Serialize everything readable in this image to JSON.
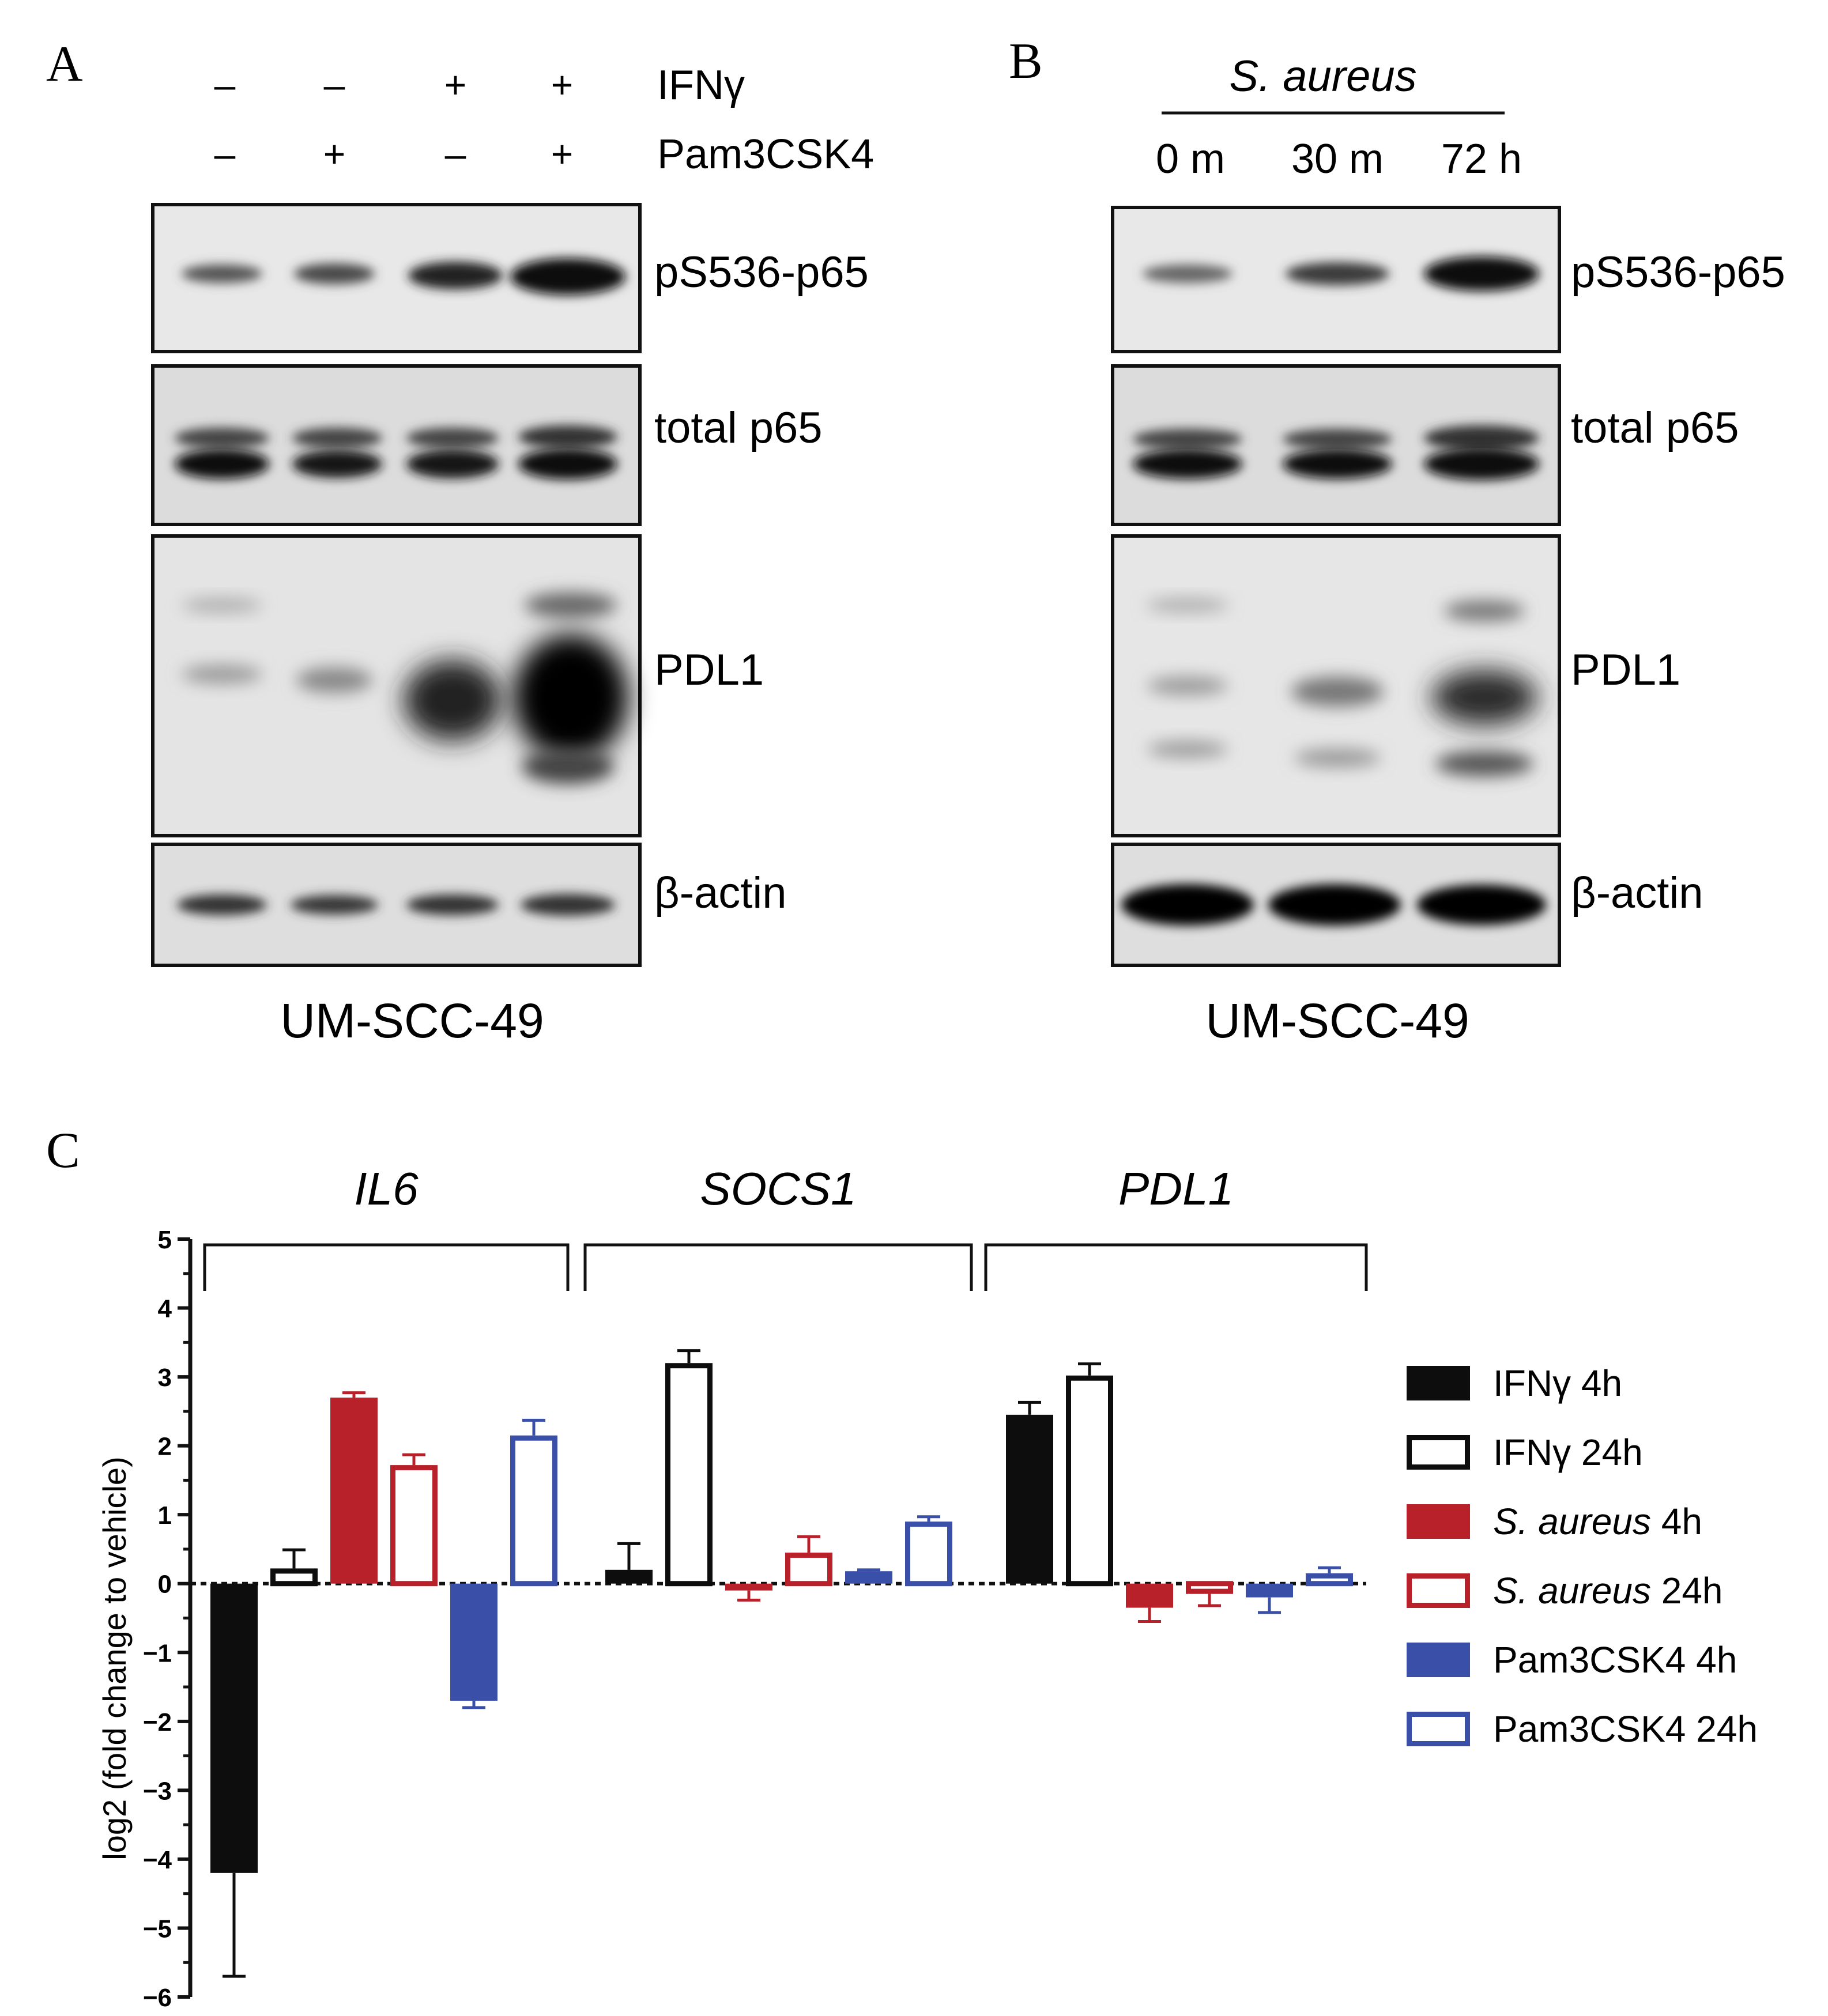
{
  "panels": {
    "a": {
      "letter": "A",
      "treatment_rows": [
        {
          "label": "IFNγ",
          "signs": [
            "–",
            "–",
            "+",
            "+"
          ]
        },
        {
          "label": "Pam3CSK4",
          "signs": [
            "–",
            "+",
            "–",
            "+"
          ]
        }
      ],
      "blots": [
        "pS536-p65",
        "total p65",
        "PDL1",
        "β-actin"
      ],
      "cell_line": "UM-SCC-49"
    },
    "b": {
      "letter": "B",
      "header": "S. aureus",
      "timepoints": [
        "0 m",
        "30 m",
        "72 h"
      ],
      "blots": [
        "pS536-p65",
        "total p65",
        "PDL1",
        "β-actin"
      ],
      "cell_line": "UM-SCC-49"
    },
    "c": {
      "letter": "C"
    }
  },
  "chart_data": {
    "type": "bar",
    "title": "",
    "xlabel": "",
    "ylabel": "log2 (fold change to vehicle)",
    "ylim": [
      -6,
      5
    ],
    "yticks": [
      "5",
      "4",
      "3",
      "2",
      "1",
      "0",
      "−1",
      "−2",
      "−3",
      "−4",
      "−5",
      "−6"
    ],
    "ytick_values": [
      5,
      4,
      3,
      2,
      1,
      0,
      -1,
      -2,
      -3,
      -4,
      -5,
      -6
    ],
    "grid": false,
    "zero_line": "dashed",
    "legend_position": "right",
    "categories": [
      "IL6",
      "SOCS1",
      "PDL1"
    ],
    "series": [
      {
        "name": "IFNγ 4h",
        "legend_main": "IFNγ",
        "legend_rest": " 4h",
        "italic_species": false,
        "color": "#0d0d0d",
        "filled": true,
        "values": [
          -4.2,
          0.2,
          2.45
        ],
        "errors": [
          1.5,
          0.38,
          0.18
        ]
      },
      {
        "name": "IFNγ 24h",
        "legend_main": "IFNγ",
        "legend_rest": " 24h",
        "italic_species": false,
        "color": "#0d0d0d",
        "filled": false,
        "values": [
          0.22,
          3.2,
          3.02
        ],
        "errors": [
          0.27,
          0.18,
          0.17
        ]
      },
      {
        "name": "S. aureus 4h",
        "legend_main": "S. aureus",
        "legend_rest": " 4h",
        "italic_species": true,
        "color": "#b8202a",
        "filled": true,
        "values": [
          2.7,
          -0.1,
          -0.35
        ],
        "errors": [
          0.07,
          0.14,
          0.2
        ]
      },
      {
        "name": "S. aureus 24h",
        "legend_main": "S. aureus",
        "legend_rest": " 24h",
        "italic_species": true,
        "color": "#b8202a",
        "filled": false,
        "values": [
          1.72,
          0.45,
          -0.15
        ],
        "errors": [
          0.15,
          0.23,
          0.17
        ]
      },
      {
        "name": "Pam3CSK4 4h",
        "legend_main": "Pam3CSK4",
        "legend_rest": " 4h",
        "italic_species": false,
        "color": "#3a4fa8",
        "filled": true,
        "values": [
          -1.7,
          0.18,
          -0.2
        ],
        "errors": [
          0.1,
          0.02,
          0.22
        ]
      },
      {
        "name": "Pam3CSK4 24h",
        "legend_main": "Pam3CSK4",
        "legend_rest": " 24h",
        "italic_species": false,
        "color": "#3a4fa8",
        "filled": false,
        "values": [
          2.15,
          0.9,
          0.15
        ],
        "errors": [
          0.22,
          0.07,
          0.08
        ]
      }
    ]
  }
}
